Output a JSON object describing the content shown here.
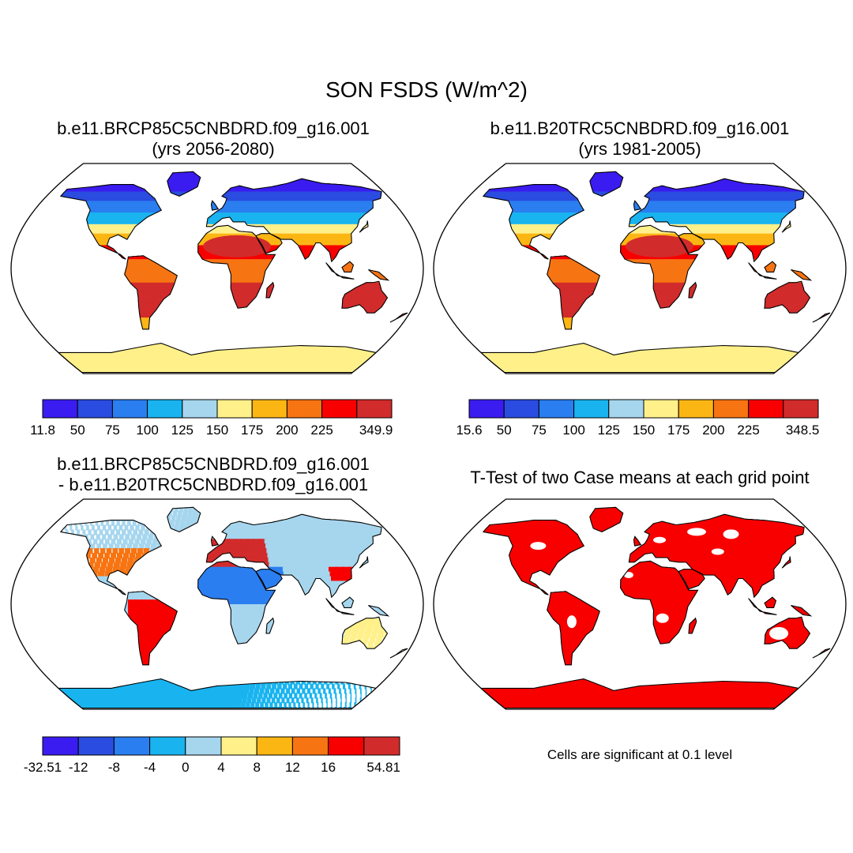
{
  "title": "SON FSDS (W/m^2)",
  "panels": [
    {
      "title_line1": "b.e11.BRCP85C5CNBDRD.f09_g16.001",
      "title_line2": "(yrs 2056-2080)",
      "colorbar": {
        "colors": [
          "#3a1cf0",
          "#2a4ce0",
          "#2a7ef0",
          "#19b4f0",
          "#a6d6ee",
          "#fff08a",
          "#fcb614",
          "#f77412",
          "#f80000",
          "#d22b2b"
        ],
        "labels": [
          "11.8",
          "50",
          "75",
          "100",
          "125",
          "150",
          "175",
          "200",
          "225",
          "349.9"
        ],
        "ends": {
          "min": "11.8",
          "max": "349.9"
        }
      }
    },
    {
      "title_line1": "b.e11.B20TRC5CNBDRD.f09_g16.001",
      "title_line2": "(yrs 1981-2005)",
      "colorbar": {
        "colors": [
          "#3a1cf0",
          "#2a4ce0",
          "#2a7ef0",
          "#19b4f0",
          "#a6d6ee",
          "#fff08a",
          "#fcb614",
          "#f77412",
          "#f80000",
          "#d22b2b"
        ],
        "labels": [
          "15.6",
          "50",
          "75",
          "100",
          "125",
          "150",
          "175",
          "200",
          "225",
          "348.5"
        ]
      }
    },
    {
      "title_line1": "b.e11.BRCP85C5CNBDRD.f09_g16.001",
      "title_line2": "- b.e11.B20TRC5CNBDRD.f09_g16.001",
      "colorbar": {
        "colors": [
          "#3a1cf0",
          "#2a4ce0",
          "#2a7ef0",
          "#19b4f0",
          "#a6d6ee",
          "#fff08a",
          "#fcb614",
          "#f77412",
          "#f80000",
          "#d22b2b"
        ],
        "labels": [
          "-32.51",
          "-12",
          "-8",
          "-4",
          "0",
          "4",
          "8",
          "12",
          "16",
          "54.81"
        ]
      }
    },
    {
      "title_line1": "T-Test of two Case means at each grid point",
      "note": "Cells are significant at 0.1 level",
      "significant_color": "#f80000"
    }
  ]
}
